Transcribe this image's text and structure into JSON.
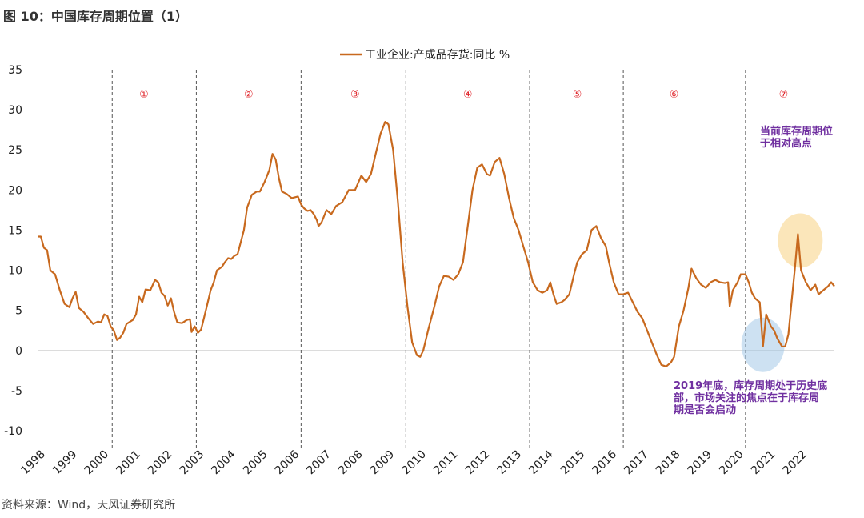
{
  "title": "图 10：中国库存周期位置（1）",
  "source": "资料来源：Wind，天风证券研究所",
  "colors": {
    "line": "#c8691e",
    "phase": "#e0242a",
    "annotation": "#7030a0",
    "rule": "#f0a57a"
  },
  "chart_data": {
    "type": "line",
    "series_name": "工业企业:产成品存货:同比 %",
    "ylim": [
      -10,
      35
    ],
    "yticks": [
      -10,
      -5,
      0,
      5,
      10,
      15,
      20,
      25,
      30,
      35
    ],
    "xlim": [
      1998,
      2023.1
    ],
    "xticks": [
      "1998",
      "1999",
      "2000",
      "2001",
      "2002",
      "2003",
      "2004",
      "2005",
      "2006",
      "2007",
      "2008",
      "2009",
      "2010",
      "2011",
      "2012",
      "2013",
      "2014",
      "2015",
      "2016",
      "2017",
      "2018",
      "2019",
      "2020",
      "2021",
      "2022"
    ],
    "dividers": [
      2000.35,
      2003.0,
      2006.3,
      2009.6,
      2013.5,
      2016.45,
      2020.3
    ],
    "phases": [
      {
        "label": "①",
        "x": 2001.35,
        "y": 32
      },
      {
        "label": "②",
        "x": 2004.65,
        "y": 32
      },
      {
        "label": "③",
        "x": 2008.0,
        "y": 32
      },
      {
        "label": "④",
        "x": 2011.55,
        "y": 32
      },
      {
        "label": "⑤",
        "x": 2015.0,
        "y": 32
      },
      {
        "label": "⑥",
        "x": 2018.05,
        "y": 32
      },
      {
        "label": "⑦",
        "x": 2021.5,
        "y": 32
      }
    ],
    "points": [
      [
        1998.0,
        14.2
      ],
      [
        1998.1,
        14.2
      ],
      [
        1998.2,
        12.8
      ],
      [
        1998.3,
        12.5
      ],
      [
        1998.4,
        10.0
      ],
      [
        1998.55,
        9.5
      ],
      [
        1998.7,
        7.5
      ],
      [
        1998.85,
        5.8
      ],
      [
        1999.0,
        5.4
      ],
      [
        1999.1,
        6.5
      ],
      [
        1999.2,
        7.3
      ],
      [
        1999.3,
        5.3
      ],
      [
        1999.45,
        4.8
      ],
      [
        1999.6,
        4.0
      ],
      [
        1999.75,
        3.3
      ],
      [
        1999.9,
        3.6
      ],
      [
        2000.0,
        3.5
      ],
      [
        2000.1,
        4.5
      ],
      [
        2000.2,
        4.3
      ],
      [
        2000.3,
        3.0
      ],
      [
        2000.4,
        2.5
      ],
      [
        2000.5,
        1.3
      ],
      [
        2000.6,
        1.6
      ],
      [
        2000.7,
        2.2
      ],
      [
        2000.8,
        3.3
      ],
      [
        2001.0,
        3.8
      ],
      [
        2001.1,
        4.5
      ],
      [
        2001.2,
        6.7
      ],
      [
        2001.3,
        6.0
      ],
      [
        2001.4,
        7.6
      ],
      [
        2001.55,
        7.5
      ],
      [
        2001.7,
        8.8
      ],
      [
        2001.8,
        8.5
      ],
      [
        2001.9,
        7.2
      ],
      [
        2002.0,
        6.8
      ],
      [
        2002.1,
        5.6
      ],
      [
        2002.2,
        6.5
      ],
      [
        2002.3,
        4.8
      ],
      [
        2002.4,
        3.5
      ],
      [
        2002.55,
        3.4
      ],
      [
        2002.7,
        3.8
      ],
      [
        2002.8,
        3.9
      ],
      [
        2002.85,
        2.3
      ],
      [
        2002.95,
        3.0
      ],
      [
        2003.05,
        2.2
      ],
      [
        2003.15,
        2.6
      ],
      [
        2003.3,
        5.0
      ],
      [
        2003.45,
        7.5
      ],
      [
        2003.55,
        8.5
      ],
      [
        2003.65,
        10.0
      ],
      [
        2003.8,
        10.4
      ],
      [
        2003.9,
        11.0
      ],
      [
        2004.0,
        11.5
      ],
      [
        2004.1,
        11.4
      ],
      [
        2004.2,
        11.8
      ],
      [
        2004.3,
        12.0
      ],
      [
        2004.5,
        15.0
      ],
      [
        2004.6,
        17.8
      ],
      [
        2004.75,
        19.4
      ],
      [
        2004.9,
        19.8
      ],
      [
        2005.0,
        19.8
      ],
      [
        2005.15,
        21.0
      ],
      [
        2005.3,
        22.5
      ],
      [
        2005.4,
        24.5
      ],
      [
        2005.5,
        23.8
      ],
      [
        2005.6,
        21.5
      ],
      [
        2005.7,
        19.8
      ],
      [
        2005.85,
        19.5
      ],
      [
        2006.0,
        19.0
      ],
      [
        2006.2,
        19.2
      ],
      [
        2006.3,
        18.2
      ],
      [
        2006.4,
        17.7
      ],
      [
        2006.5,
        17.4
      ],
      [
        2006.6,
        17.5
      ],
      [
        2006.7,
        17.0
      ],
      [
        2006.8,
        16.2
      ],
      [
        2006.85,
        15.5
      ],
      [
        2006.95,
        16.0
      ],
      [
        2007.1,
        17.5
      ],
      [
        2007.25,
        17.0
      ],
      [
        2007.4,
        18.0
      ],
      [
        2007.6,
        18.5
      ],
      [
        2007.8,
        20.0
      ],
      [
        2008.0,
        20.0
      ],
      [
        2008.2,
        21.8
      ],
      [
        2008.35,
        21.0
      ],
      [
        2008.5,
        22.0
      ],
      [
        2008.65,
        24.5
      ],
      [
        2008.8,
        27.0
      ],
      [
        2008.95,
        28.5
      ],
      [
        2009.05,
        28.2
      ],
      [
        2009.2,
        25.0
      ],
      [
        2009.35,
        18.5
      ],
      [
        2009.5,
        11.0
      ],
      [
        2009.65,
        5.5
      ],
      [
        2009.8,
        1.0
      ],
      [
        2009.95,
        -0.6
      ],
      [
        2010.05,
        -0.8
      ],
      [
        2010.15,
        0.0
      ],
      [
        2010.3,
        2.5
      ],
      [
        2010.5,
        5.5
      ],
      [
        2010.65,
        8.0
      ],
      [
        2010.8,
        9.3
      ],
      [
        2010.95,
        9.2
      ],
      [
        2011.1,
        8.8
      ],
      [
        2011.25,
        9.5
      ],
      [
        2011.4,
        11.0
      ],
      [
        2011.55,
        15.5
      ],
      [
        2011.7,
        20.0
      ],
      [
        2011.85,
        22.8
      ],
      [
        2012.0,
        23.2
      ],
      [
        2012.15,
        22.0
      ],
      [
        2012.25,
        21.8
      ],
      [
        2012.4,
        23.5
      ],
      [
        2012.55,
        24.0
      ],
      [
        2012.7,
        22.0
      ],
      [
        2012.85,
        19.0
      ],
      [
        2013.0,
        16.5
      ],
      [
        2013.15,
        15.0
      ],
      [
        2013.3,
        13.0
      ],
      [
        2013.45,
        11.0
      ],
      [
        2013.6,
        8.5
      ],
      [
        2013.75,
        7.5
      ],
      [
        2013.9,
        7.2
      ],
      [
        2014.05,
        7.5
      ],
      [
        2014.15,
        8.5
      ],
      [
        2014.25,
        7.0
      ],
      [
        2014.35,
        5.8
      ],
      [
        2014.5,
        6.0
      ],
      [
        2014.6,
        6.3
      ],
      [
        2014.75,
        7.0
      ],
      [
        2014.9,
        9.5
      ],
      [
        2015.0,
        11.0
      ],
      [
        2015.15,
        12.0
      ],
      [
        2015.3,
        12.5
      ],
      [
        2015.45,
        15.0
      ],
      [
        2015.6,
        15.5
      ],
      [
        2015.75,
        14.0
      ],
      [
        2015.9,
        13.0
      ],
      [
        2016.0,
        11.0
      ],
      [
        2016.15,
        8.5
      ],
      [
        2016.3,
        7.0
      ],
      [
        2016.45,
        7.0
      ],
      [
        2016.6,
        7.2
      ],
      [
        2016.75,
        6.0
      ],
      [
        2016.9,
        4.8
      ],
      [
        2017.05,
        4.0
      ],
      [
        2017.2,
        2.5
      ],
      [
        2017.35,
        1.0
      ],
      [
        2017.5,
        -0.5
      ],
      [
        2017.65,
        -1.8
      ],
      [
        2017.8,
        -2.0
      ],
      [
        2017.95,
        -1.5
      ],
      [
        2018.05,
        -0.8
      ],
      [
        2018.2,
        3.0
      ],
      [
        2018.35,
        5.0
      ],
      [
        2018.5,
        7.8
      ],
      [
        2018.6,
        10.2
      ],
      [
        2018.75,
        9.0
      ],
      [
        2018.9,
        8.2
      ],
      [
        2019.05,
        7.8
      ],
      [
        2019.2,
        8.5
      ],
      [
        2019.35,
        8.8
      ],
      [
        2019.5,
        8.5
      ],
      [
        2019.65,
        8.4
      ],
      [
        2019.75,
        8.5
      ],
      [
        2019.8,
        5.5
      ],
      [
        2019.9,
        7.5
      ],
      [
        2020.05,
        8.5
      ],
      [
        2020.15,
        9.5
      ],
      [
        2020.3,
        9.5
      ],
      [
        2020.4,
        8.5
      ],
      [
        2020.5,
        7.2
      ],
      [
        2020.6,
        6.5
      ],
      [
        2020.75,
        6.0
      ],
      [
        2020.85,
        0.5
      ],
      [
        2020.95,
        4.5
      ],
      [
        2021.1,
        3.0
      ],
      [
        2021.2,
        2.5
      ],
      [
        2021.3,
        1.5
      ],
      [
        2021.45,
        0.5
      ],
      [
        2021.55,
        0.5
      ],
      [
        2021.65,
        2.0
      ],
      [
        2021.75,
        6.0
      ],
      [
        2021.85,
        10.0
      ],
      [
        2021.95,
        14.5
      ],
      [
        2022.05,
        10.0
      ],
      [
        2022.2,
        8.5
      ],
      [
        2022.35,
        7.5
      ],
      [
        2022.5,
        8.2
      ],
      [
        2022.6,
        7.0
      ],
      [
        2022.75,
        7.5
      ],
      [
        2022.9,
        8.0
      ],
      [
        2023.0,
        8.5
      ],
      [
        2023.1,
        8.0
      ]
    ],
    "annotation_top": [
      "当前库存周期位",
      "于相对高点"
    ],
    "annotation_bottom": [
      "2019年底，库存周期处于历史底",
      "部，市场关注的焦点在于库存周",
      "期是否会启动"
    ]
  }
}
